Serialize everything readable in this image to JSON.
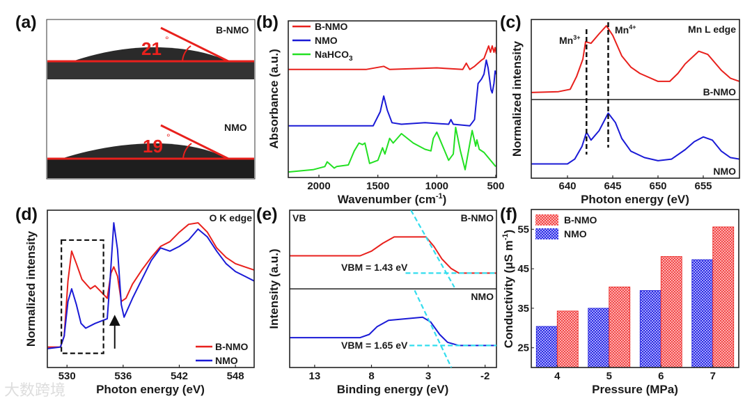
{
  "panel_labels": {
    "a": "(a)",
    "b": "(b)",
    "c": "(c)",
    "d": "(d)",
    "e": "(e)",
    "f": "(f)"
  },
  "watermark": "大数跨境",
  "colors": {
    "bnmo": "#e8201c",
    "nmo": "#1a1ad6",
    "nahco3": "#22e022",
    "guide": "#33ddee",
    "dash": "#111111"
  },
  "chart_data": [
    {
      "id": "a",
      "type": "image",
      "images": [
        {
          "label": "B-NMO",
          "angle": "21",
          "degree": "°"
        },
        {
          "label": "NMO",
          "angle": "19",
          "degree": "°"
        }
      ]
    },
    {
      "id": "b",
      "type": "line",
      "xlabel": "Wavenumber (cm",
      "xlabel_sup": "-1",
      "xlabel_end": ")",
      "ylabel": "Absorbance (a.u.)",
      "xlim": [
        2260,
        494
      ],
      "ylim": [
        0,
        1
      ],
      "xticks": [
        2000,
        1500,
        1000,
        500
      ],
      "xtick_labels": [
        "2000",
        "1500",
        "1000",
        "500"
      ],
      "legend": [
        "B-NMO",
        "NMO",
        "NaHCO"
      ],
      "legend_sub": "3",
      "legend_position": "top-left",
      "series": [
        {
          "name": "B-NMO",
          "color": "#e8201c",
          "points": [
            [
              2260,
              0.69
            ],
            [
              1600,
              0.69
            ],
            [
              1450,
              0.71
            ],
            [
              1400,
              0.69
            ],
            [
              1000,
              0.7
            ],
            [
              780,
              0.69
            ],
            [
              750,
              0.73
            ],
            [
              720,
              0.69
            ],
            [
              680,
              0.71
            ],
            [
              620,
              0.75
            ],
            [
              600,
              0.76
            ],
            [
              560,
              0.84
            ],
            [
              545,
              0.8
            ],
            [
              530,
              0.84
            ],
            [
              515,
              0.8
            ],
            [
              505,
              0.83
            ],
            [
              495,
              0.79
            ]
          ]
        },
        {
          "name": "NMO",
          "color": "#1a1ad6",
          "points": [
            [
              2260,
              0.33
            ],
            [
              1540,
              0.33
            ],
            [
              1480,
              0.42
            ],
            [
              1450,
              0.52
            ],
            [
              1420,
              0.43
            ],
            [
              1380,
              0.35
            ],
            [
              1300,
              0.34
            ],
            [
              1100,
              0.35
            ],
            [
              900,
              0.34
            ],
            [
              880,
              0.37
            ],
            [
              860,
              0.34
            ],
            [
              720,
              0.33
            ],
            [
              680,
              0.37
            ],
            [
              650,
              0.6
            ],
            [
              620,
              0.63
            ],
            [
              600,
              0.66
            ],
            [
              580,
              0.75
            ],
            [
              565,
              0.7
            ],
            [
              540,
              0.56
            ],
            [
              530,
              0.54
            ],
            [
              515,
              0.6
            ],
            [
              505,
              0.68
            ],
            [
              495,
              0.66
            ]
          ]
        },
        {
          "name": "NaHCO3",
          "color": "#22e022",
          "points": [
            [
              2260,
              0.035
            ],
            [
              2050,
              0.05
            ],
            [
              1950,
              0.07
            ],
            [
              1930,
              0.1
            ],
            [
              1870,
              0.06
            ],
            [
              1850,
              0.07
            ],
            [
              1750,
              0.08
            ],
            [
              1700,
              0.17
            ],
            [
              1660,
              0.22
            ],
            [
              1630,
              0.21
            ],
            [
              1610,
              0.22
            ],
            [
              1570,
              0.09
            ],
            [
              1500,
              0.11
            ],
            [
              1460,
              0.19
            ],
            [
              1440,
              0.15
            ],
            [
              1400,
              0.25
            ],
            [
              1370,
              0.22
            ],
            [
              1300,
              0.28
            ],
            [
              1200,
              0.22
            ],
            [
              1100,
              0.18
            ],
            [
              1050,
              0.17
            ],
            [
              1030,
              0.25
            ],
            [
              1000,
              0.29
            ],
            [
              950,
              0.2
            ],
            [
              900,
              0.11
            ],
            [
              860,
              0.15
            ],
            [
              840,
              0.32
            ],
            [
              800,
              0.17
            ],
            [
              760,
              0.05
            ],
            [
              700,
              0.3
            ],
            [
              670,
              0.2
            ],
            [
              660,
              0.24
            ],
            [
              640,
              0.18
            ],
            [
              600,
              0.16
            ],
            [
              500,
              0.07
            ]
          ]
        }
      ]
    },
    {
      "id": "c",
      "type": "line",
      "xlabel": "Photon energy (eV)",
      "ylabel": "Normalized intensity",
      "title": "Mn L edge",
      "xlim": [
        636,
        659
      ],
      "ylim": [
        0,
        1
      ],
      "xticks": [
        640,
        645,
        650,
        655
      ],
      "xtick_labels": [
        "640",
        "645",
        "650",
        "655"
      ],
      "sample_labels": [
        "B-NMO",
        "NMO"
      ],
      "annotations": [
        {
          "text": "Mn",
          "sup": "3+",
          "x": 642.1
        },
        {
          "text": "Mn",
          "sup": "4+",
          "x": 644.5
        }
      ],
      "series": [
        {
          "name": "B-NMO",
          "color": "#e8201c",
          "points": [
            [
              636,
              0.54
            ],
            [
              639,
              0.545
            ],
            [
              640.3,
              0.56
            ],
            [
              641,
              0.64
            ],
            [
              641.7,
              0.75
            ],
            [
              642,
              0.86
            ],
            [
              642.6,
              0.85
            ],
            [
              643.5,
              0.91
            ],
            [
              644.3,
              0.96
            ],
            [
              645,
              0.9
            ],
            [
              646,
              0.77
            ],
            [
              647,
              0.7
            ],
            [
              648,
              0.66
            ],
            [
              650,
              0.61
            ],
            [
              651.3,
              0.61
            ],
            [
              652.2,
              0.66
            ],
            [
              653,
              0.72
            ],
            [
              654.5,
              0.8
            ],
            [
              655.5,
              0.78
            ],
            [
              657,
              0.68
            ],
            [
              658,
              0.63
            ],
            [
              659,
              0.61
            ]
          ]
        },
        {
          "name": "NMO",
          "color": "#1a1ad6",
          "points": [
            [
              636,
              0.09
            ],
            [
              640,
              0.09
            ],
            [
              640.8,
              0.12
            ],
            [
              641.6,
              0.2
            ],
            [
              642.1,
              0.29
            ],
            [
              642.6,
              0.24
            ],
            [
              643.5,
              0.3
            ],
            [
              644.5,
              0.41
            ],
            [
              645.3,
              0.35
            ],
            [
              646,
              0.25
            ],
            [
              647,
              0.17
            ],
            [
              648.5,
              0.13
            ],
            [
              650,
              0.11
            ],
            [
              651.5,
              0.12
            ],
            [
              653,
              0.18
            ],
            [
              654,
              0.23
            ],
            [
              655,
              0.26
            ],
            [
              656,
              0.24
            ],
            [
              657,
              0.17
            ],
            [
              658,
              0.13
            ],
            [
              659,
              0.12
            ]
          ]
        }
      ]
    },
    {
      "id": "d",
      "type": "line",
      "xlabel": "Photon energy (eV)",
      "ylabel": "Normalized intensity",
      "title": "O K edge",
      "xlim": [
        527.9,
        550
      ],
      "ylim": [
        0,
        1
      ],
      "xticks": [
        530,
        536,
        542,
        548
      ],
      "xtick_labels": [
        "530",
        "536",
        "542",
        "548"
      ],
      "legend": [
        "B-NMO",
        "NMO"
      ],
      "legend_position": "bottom-right",
      "highlight_box": {
        "x": [
          529.4,
          533.9
        ],
        "y": [
          0.09,
          0.81
        ]
      },
      "arrow_x": 535.1,
      "series": [
        {
          "name": "B-NMO",
          "color": "#e8201c",
          "points": [
            [
              527.9,
              0.13
            ],
            [
              529.3,
              0.13
            ],
            [
              529.7,
              0.2
            ],
            [
              530.1,
              0.55
            ],
            [
              530.5,
              0.74
            ],
            [
              531,
              0.66
            ],
            [
              531.6,
              0.56
            ],
            [
              532.5,
              0.5
            ],
            [
              533,
              0.52
            ],
            [
              533.5,
              0.49
            ],
            [
              534.3,
              0.44
            ],
            [
              534.7,
              0.6
            ],
            [
              535,
              0.64
            ],
            [
              535.4,
              0.58
            ],
            [
              535.8,
              0.42
            ],
            [
              536.3,
              0.44
            ],
            [
              537,
              0.53
            ],
            [
              538,
              0.62
            ],
            [
              539,
              0.7
            ],
            [
              540,
              0.77
            ],
            [
              541,
              0.8
            ],
            [
              542,
              0.86
            ],
            [
              543,
              0.91
            ],
            [
              544,
              0.92
            ],
            [
              545,
              0.86
            ],
            [
              546,
              0.76
            ],
            [
              547,
              0.7
            ],
            [
              548,
              0.66
            ],
            [
              549,
              0.64
            ],
            [
              550,
              0.62
            ]
          ]
        },
        {
          "name": "NMO",
          "color": "#1a1ad6",
          "points": [
            [
              527.9,
              0.12
            ],
            [
              529.3,
              0.13
            ],
            [
              529.7,
              0.2
            ],
            [
              530.1,
              0.42
            ],
            [
              530.5,
              0.5
            ],
            [
              531,
              0.4
            ],
            [
              531.5,
              0.28
            ],
            [
              532,
              0.25
            ],
            [
              533,
              0.28
            ],
            [
              534.3,
              0.31
            ],
            [
              534.6,
              0.55
            ],
            [
              535,
              0.92
            ],
            [
              535.4,
              0.75
            ],
            [
              535.8,
              0.4
            ],
            [
              536.1,
              0.32
            ],
            [
              537,
              0.44
            ],
            [
              538,
              0.56
            ],
            [
              539,
              0.68
            ],
            [
              540,
              0.76
            ],
            [
              541,
              0.74
            ],
            [
              542,
              0.77
            ],
            [
              543,
              0.81
            ],
            [
              544,
              0.88
            ],
            [
              545,
              0.83
            ],
            [
              546,
              0.74
            ],
            [
              547,
              0.66
            ],
            [
              548,
              0.61
            ],
            [
              549,
              0.58
            ],
            [
              550,
              0.55
            ]
          ]
        }
      ]
    },
    {
      "id": "e",
      "type": "line",
      "xlabel": "Binding energy (eV)",
      "ylabel": "Intensity (a.u.)",
      "title": "VB",
      "xlim": [
        15.2,
        -3
      ],
      "ylim": [
        0,
        1
      ],
      "xticks": [
        13,
        8,
        3,
        -2
      ],
      "xtick_labels": [
        "13",
        "8",
        "3",
        "-2"
      ],
      "sample_labels": [
        "B-NMO",
        "NMO"
      ],
      "annotations": [
        {
          "text": "VBM = 1.43 eV"
        },
        {
          "text": "VBM = 1.65 eV"
        }
      ],
      "series": [
        {
          "name": "B-NMO",
          "color": "#e8201c",
          "points": [
            [
              15.2,
              0.71
            ],
            [
              9,
              0.71
            ],
            [
              8,
              0.74
            ],
            [
              7,
              0.79
            ],
            [
              6,
              0.83
            ],
            [
              3.2,
              0.83
            ],
            [
              2.5,
              0.77
            ],
            [
              1.8,
              0.69
            ],
            [
              1,
              0.63
            ],
            [
              0.3,
              0.6
            ],
            [
              -3,
              0.6
            ]
          ]
        },
        {
          "name": "NMO",
          "color": "#1a1ad6",
          "points": [
            [
              15.2,
              0.19
            ],
            [
              9,
              0.19
            ],
            [
              8.2,
              0.21
            ],
            [
              7.5,
              0.26
            ],
            [
              6.5,
              0.3
            ],
            [
              3.5,
              0.32
            ],
            [
              2.8,
              0.29
            ],
            [
              2,
              0.21
            ],
            [
              1.3,
              0.16
            ],
            [
              0.3,
              0.14
            ],
            [
              -3,
              0.14
            ]
          ]
        }
      ],
      "guides": [
        [
          [
            4.53,
            1.0
          ],
          [
            0.7,
            0.51
          ]
        ],
        [
          [
            5.0,
            0.6
          ],
          [
            -3,
            0.6
          ]
        ],
        [
          [
            4.2,
            0.49
          ],
          [
            0.97,
            0.0
          ]
        ],
        [
          [
            4.65,
            0.14
          ],
          [
            -3,
            0.14
          ]
        ]
      ]
    },
    {
      "id": "f",
      "type": "bar",
      "xlabel": "Pressure (MPa)",
      "ylabel": "Conductivity (μS m",
      "ylabel_sup": "-1",
      "ylabel_end": ")",
      "categories": [
        "4",
        "5",
        "6",
        "7"
      ],
      "ylim": [
        20,
        60
      ],
      "yticks": [
        25,
        35,
        45,
        55
      ],
      "ytick_labels": [
        "25",
        "35",
        "45",
        "55"
      ],
      "legend": [
        "B-NMO",
        "NMO"
      ],
      "legend_position": "top-left",
      "series": [
        {
          "name": "NMO",
          "color": "#1a1ad6",
          "values": [
            30.4,
            35.0,
            39.5,
            47.3
          ]
        },
        {
          "name": "B-NMO",
          "color": "#e8201c",
          "values": [
            34.3,
            40.4,
            48.1,
            55.6
          ]
        }
      ]
    }
  ]
}
